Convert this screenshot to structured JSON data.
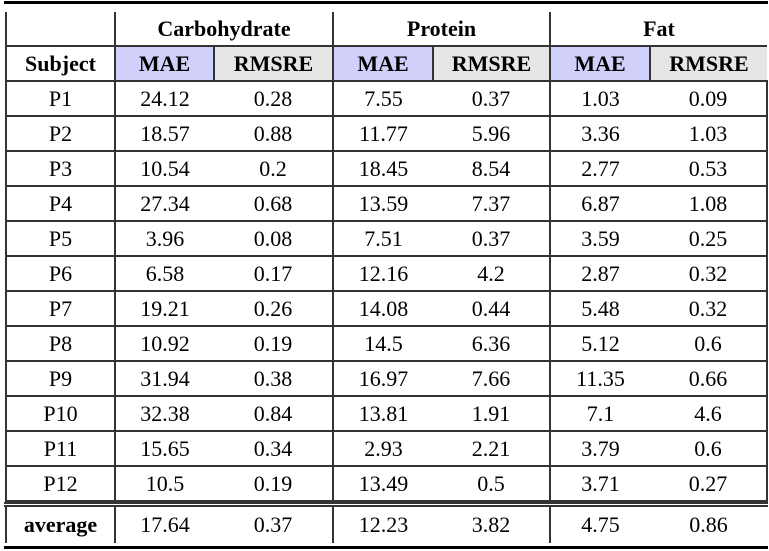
{
  "table": {
    "corner": "",
    "groups": [
      "Carbohydrate",
      "Protein",
      "Fat"
    ],
    "subject_label": "Subject",
    "metrics": [
      "MAE",
      "RMSRE",
      "MAE",
      "RMSRE",
      "MAE",
      "RMSRE"
    ],
    "rows": [
      [
        "P1",
        "24.12",
        "0.28",
        "7.55",
        "0.37",
        "1.03",
        "0.09"
      ],
      [
        "P2",
        "18.57",
        "0.88",
        "11.77",
        "5.96",
        "3.36",
        "1.03"
      ],
      [
        "P3",
        "10.54",
        "0.2",
        "18.45",
        "8.54",
        "2.77",
        "0.53"
      ],
      [
        "P4",
        "27.34",
        "0.68",
        "13.59",
        "7.37",
        "6.87",
        "1.08"
      ],
      [
        "P5",
        "3.96",
        "0.08",
        "7.51",
        "0.37",
        "3.59",
        "0.25"
      ],
      [
        "P6",
        "6.58",
        "0.17",
        "12.16",
        "4.2",
        "2.87",
        "0.32"
      ],
      [
        "P7",
        "19.21",
        "0.26",
        "14.08",
        "0.44",
        "5.48",
        "0.32"
      ],
      [
        "P8",
        "10.92",
        "0.19",
        "14.5",
        "6.36",
        "5.12",
        "0.6"
      ],
      [
        "P9",
        "31.94",
        "0.38",
        "16.97",
        "7.66",
        "11.35",
        "0.66"
      ],
      [
        "P10",
        "32.38",
        "0.84",
        "13.81",
        "1.91",
        "7.1",
        "4.6"
      ],
      [
        "P11",
        "15.65",
        "0.34",
        "2.93",
        "2.21",
        "3.79",
        "0.6"
      ],
      [
        "P12",
        "10.5",
        "0.19",
        "13.49",
        "0.5",
        "3.71",
        "0.27"
      ]
    ],
    "average": [
      "average",
      "17.64",
      "0.37",
      "12.23",
      "3.82",
      "4.75",
      "0.86"
    ]
  },
  "colors": {
    "mae_header_bg": "#d0d0fb",
    "rmsre_header_bg": "#e6e6e6"
  }
}
